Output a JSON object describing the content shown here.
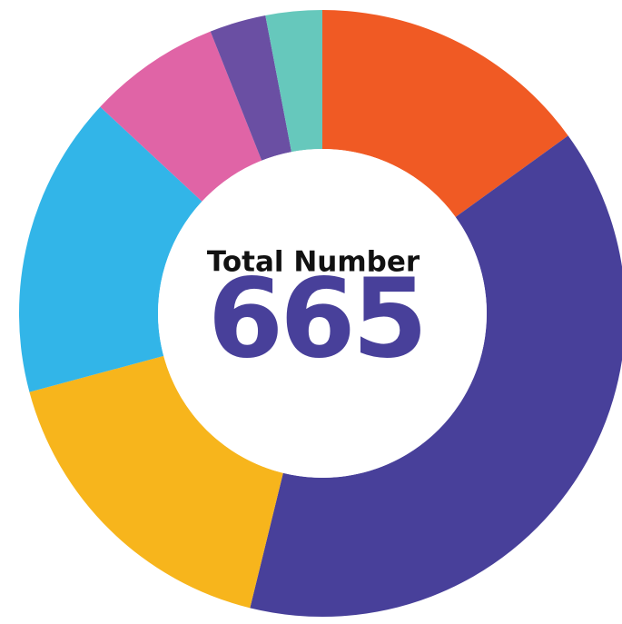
{
  "chart_data": {
    "type": "donut",
    "title": "Total Number",
    "total": 665,
    "values": [
      100,
      258,
      113,
      107,
      47,
      20,
      20
    ],
    "colors": [
      "#f05a24",
      "#48409a",
      "#f7b51c",
      "#32b5e8",
      "#e064a6",
      "#6a4fa3",
      "#66c8bc"
    ]
  }
}
